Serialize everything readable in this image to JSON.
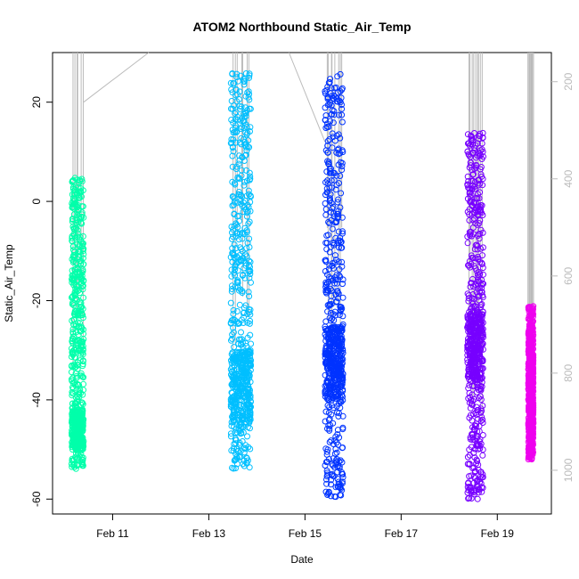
{
  "chart_data": {
    "type": "scatter",
    "title": "ATOM2 Northbound Static_Air_Temp",
    "xlabel": "Date",
    "ylabel": "Static_Air_Temp",
    "x_range": [
      "2012-02-09T18:00",
      "2012-02-20T03:00"
    ],
    "ylim": [
      -63,
      30
    ],
    "y2lim": [
      1090,
      140
    ],
    "x_ticks": [
      {
        "date": "2012-02-11",
        "label": "Feb 11"
      },
      {
        "date": "2012-02-13",
        "label": "Feb 13"
      },
      {
        "date": "2012-02-15",
        "label": "Feb 15"
      },
      {
        "date": "2012-02-17",
        "label": "Feb 17"
      },
      {
        "date": "2012-02-19",
        "label": "Feb 19"
      }
    ],
    "y_ticks": [
      20,
      0,
      -20,
      -40,
      -60
    ],
    "y2_ticks": [
      200,
      400,
      600,
      800,
      1000
    ],
    "y2_axis_color": "#bbbbbb",
    "profile_line_color": "#bbbbbb",
    "marker": "open-circle",
    "series": [
      {
        "color": "#00ffaa",
        "start": "2012-02-10T03:30",
        "end": "2012-02-10T09:30",
        "ymin": -54,
        "ymax": 5,
        "dense_low": [
          -50,
          -42
        ]
      },
      {
        "color": "#00bfff",
        "start": "2012-02-13T11:00",
        "end": "2012-02-13T21:00",
        "ymin": -54,
        "ymax": 26,
        "dense_low": [
          -45,
          -30
        ]
      },
      {
        "color": "#0033ff",
        "start": "2012-02-15T10:00",
        "end": "2012-02-15T19:00",
        "ymin": -60,
        "ymax": 26,
        "dense_low": [
          -40,
          -25
        ]
      },
      {
        "color": "#7700ff",
        "start": "2012-02-18T09:00",
        "end": "2012-02-18T17:00",
        "ymin": -60,
        "ymax": 14,
        "dense_low": [
          -36,
          -22
        ]
      },
      {
        "color": "#ee00ee",
        "start": "2012-02-19T15:30",
        "end": "2012-02-19T18:00",
        "ymin": -52,
        "ymax": -21,
        "dense_low": [
          -50,
          -28
        ]
      }
    ]
  }
}
